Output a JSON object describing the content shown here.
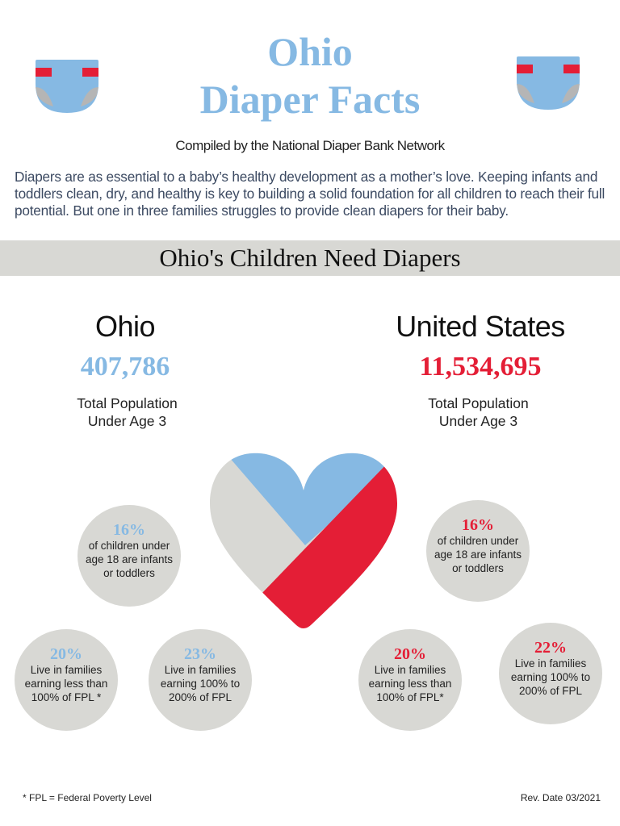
{
  "header": {
    "title_line1": "Ohio",
    "title_line2": "Diaper Facts",
    "compiled_by": "Compiled by the National Diaper Bank Network",
    "intro": "Diapers are as essential to a baby’s healthy development as a mother’s love. Keeping infants and toddlers clean, dry, and healthy is key to building a solid foundation for all children to reach their full potential. But one in three families struggles to provide clean diapers for their baby."
  },
  "banner": {
    "title": "Ohio's Children Need Diapers"
  },
  "ohio": {
    "name": "Ohio",
    "population": "407,786",
    "population_label_1": "Total Population",
    "population_label_2": "Under Age 3",
    "stats": [
      {
        "value": "16%",
        "text": "of children under age 18 are infants or toddlers"
      },
      {
        "value": "20%",
        "text": "Live in families earning less than 100% of FPL *"
      },
      {
        "value": "23%",
        "text": "Live in families earning 100% to 200% of FPL"
      }
    ]
  },
  "us": {
    "name": "United States",
    "population": "11,534,695",
    "population_label_1": "Total Population",
    "population_label_2": "Under Age 3",
    "stats": [
      {
        "value": "16%",
        "text": "of children under age 18 are infants or toddlers"
      },
      {
        "value": "20%",
        "text": "Live in families earning less than 100% of FPL*"
      },
      {
        "value": "22%",
        "text": "Live in families earning 100% to 200% of FPL"
      }
    ]
  },
  "footer": {
    "note": "* FPL = Federal Poverty Level",
    "rev_date": "Rev. Date 03/2021"
  },
  "colors": {
    "blue": "#86b9e3",
    "red": "#e41e36",
    "gray": "#d8d8d4",
    "diaper_gray": "#b5b5b5"
  }
}
